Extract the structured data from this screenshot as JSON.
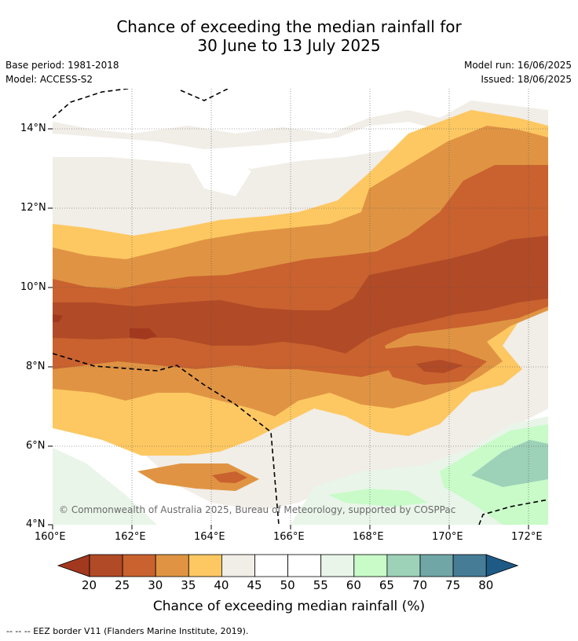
{
  "title_line1": "Chance of exceeding the median rainfall for",
  "title_line2": "30 June to 13 July 2025",
  "meta": {
    "base_period": "Base period: 1981-2018",
    "model": "Model: ACCESS-S2",
    "model_run": "Model run: 16/06/2025",
    "issued": "Issued: 18/06/2025"
  },
  "axes": {
    "lon_ticks": [
      "160°E",
      "162°E",
      "164°E",
      "166°E",
      "168°E",
      "170°E",
      "172°E"
    ],
    "lat_ticks": [
      "14°N",
      "12°N",
      "10°N",
      "8°N",
      "6°N",
      "4°N"
    ]
  },
  "credit": "© Commonwealth of Australia 2025, Bureau of Meteorology, supported by COSPPac",
  "colorbar": {
    "title": "Chance of exceeding median rainfall (%)",
    "labels": [
      "20",
      "25",
      "30",
      "35",
      "40",
      "45",
      "50",
      "55",
      "60",
      "65",
      "70",
      "75",
      "80"
    ],
    "colors": [
      "#a2391f",
      "#b14a26",
      "#c9622f",
      "#e09443",
      "#fdc862",
      "#f1ede7",
      "#ffffff",
      "#ffffff",
      "#e9f5e9",
      "#c8fbc8",
      "#9dd1b8",
      "#70a6a6",
      "#467c96",
      "#1e5a86"
    ]
  },
  "footnote": "-- -- -- EEZ border V11 (Flanders Marine Institute, 2019)."
}
